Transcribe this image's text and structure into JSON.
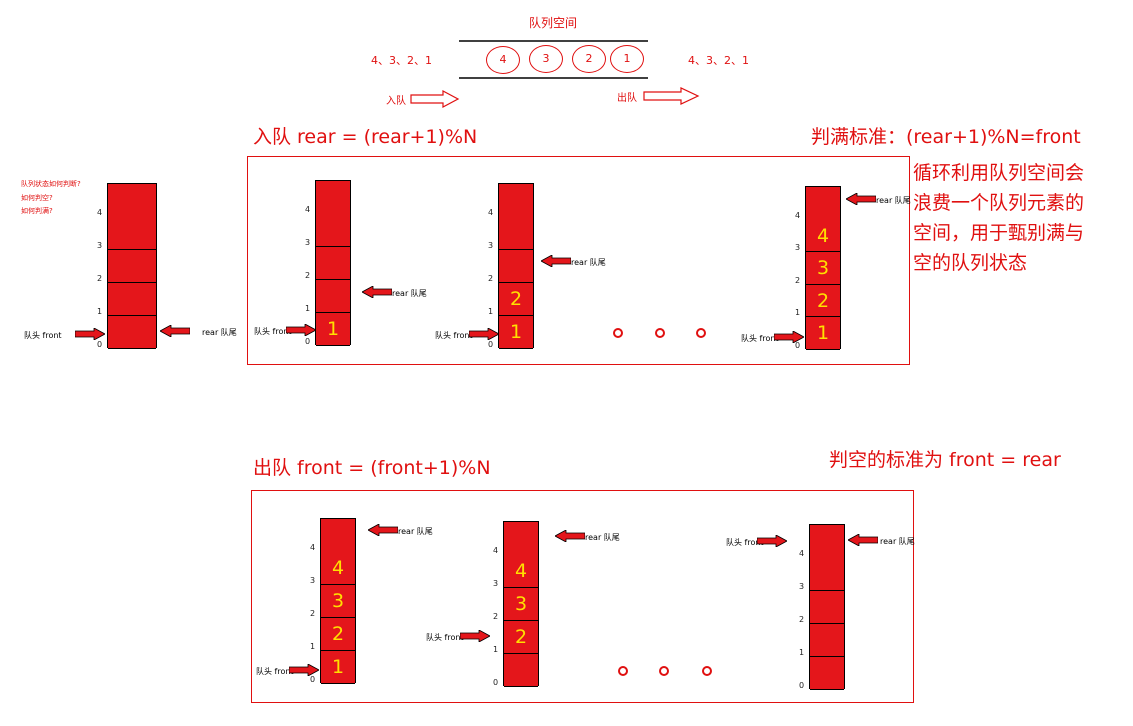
{
  "top": {
    "title": "队列空间",
    "balls": [
      "4",
      "3",
      "2",
      "1"
    ],
    "in_seq": "4、3、2、1",
    "out_seq": "4、3、2、1",
    "in_label": "入队",
    "out_label": "出队"
  },
  "enqueue": {
    "heading": "入队 rear = (rear+1)%N",
    "full_rule": "判满标准：(rear+1)%N=front",
    "note": "循环利用队列空间会浪费一个队列元素的空间，用于甄别满与空的队列状态"
  },
  "dequeue": {
    "heading": "出队 front = (front+1)%N",
    "empty_rule": "判空的标准为 front = rear"
  },
  "left_notes": [
    "队列状态如何判断?",
    "如何判空?",
    "如何判满?"
  ],
  "labels": {
    "front": "队头 front",
    "rear": "rear 队尾"
  },
  "indices": [
    "0",
    "1",
    "2",
    "3",
    "4"
  ],
  "stacks": {
    "s0": [
      "",
      "",
      "",
      "",
      ""
    ],
    "e1": [
      "1",
      "",
      "",
      "",
      ""
    ],
    "e2": [
      "1",
      "2",
      "",
      "",
      ""
    ],
    "e3": [
      "1",
      "2",
      "3",
      "4",
      ""
    ],
    "d1": [
      "1",
      "2",
      "3",
      "4",
      ""
    ],
    "d2": [
      "",
      "2",
      "3",
      "4",
      ""
    ],
    "d3": [
      "",
      "",
      "",
      "",
      ""
    ]
  },
  "colors": {
    "accent": "#e01010",
    "cell": "#e4161b",
    "digit": "#ffe000"
  }
}
